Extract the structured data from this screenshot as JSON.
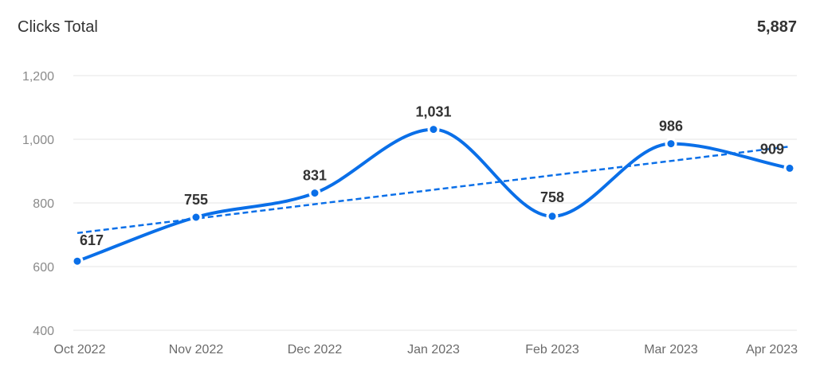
{
  "header": {
    "title": "Clicks Total",
    "total": "5,887"
  },
  "colors": {
    "line": "#0a6fe8",
    "trend": "#0a6fe8"
  },
  "chart_data": {
    "type": "line",
    "categories": [
      "Oct 2022",
      "Nov 2022",
      "Dec 2022",
      "Jan 2023",
      "Feb 2023",
      "Mar 2023",
      "Apr 2023"
    ],
    "series": [
      {
        "values": [
          617,
          755,
          831,
          1031,
          758,
          986,
          909
        ],
        "data_labels": [
          "617",
          "755",
          "831",
          "1,031",
          "758",
          "986",
          "909"
        ]
      }
    ],
    "trendline": {
      "type": "linear",
      "style": "dashed"
    },
    "ylim": [
      400,
      1200
    ],
    "yticks": [
      {
        "value": 400,
        "label": "400"
      },
      {
        "value": 600,
        "label": "600"
      },
      {
        "value": 800,
        "label": "800"
      },
      {
        "value": 1000,
        "label": "1,000"
      },
      {
        "value": 1200,
        "label": "1,200"
      }
    ],
    "grid": true,
    "smooth": true,
    "markers": true
  }
}
